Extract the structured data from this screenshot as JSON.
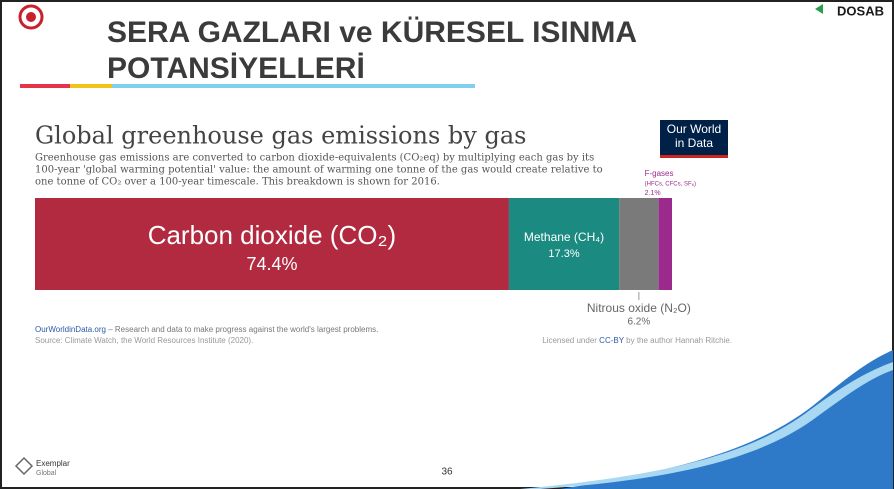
{
  "slide": {
    "title_lines": [
      "SERA GAZLARI ve KÜRESEL ISINMA",
      "POTANSİYELLERİ"
    ],
    "logo_right": "DOSAB",
    "footer_logo": [
      "Exemplar",
      "Global"
    ],
    "page_number": "36"
  },
  "chart_data": {
    "type": "bar",
    "stacked": true,
    "title": "Global greenhouse gas emissions by gas",
    "subtitle_lines": [
      "Greenhouse gas emissions are converted to carbon dioxide-equivalents (CO₂eq) by multiplying each gas by its",
      "100-year 'global warming potential' value: the amount of warming one tonne of the gas would create relative to",
      "one tonne of CO₂ over a 100-year timescale. This breakdown is shown for 2016."
    ],
    "brand": [
      "Our World",
      "in Data"
    ],
    "series": [
      {
        "name": "Carbon dioxide (CO₂)",
        "color": "#b12a3f",
        "values": [
          74.4
        ],
        "value_labels": [
          "74.4%"
        ]
      },
      {
        "name": "Methane (CH₄)",
        "color": "#1b8a80",
        "values": [
          17.3
        ],
        "value_labels": [
          "17.3%"
        ]
      },
      {
        "name": "Nitrous oxide (N₂O)",
        "color": "#7a7a7a",
        "values": [
          6.2
        ],
        "value_labels": [
          "6.2%"
        ]
      },
      {
        "name": "F-gases",
        "note": "(HFCs, CFCs, SF₆)",
        "color": "#9b2a8c",
        "values": [
          2.1
        ],
        "value_labels": [
          "2.1%"
        ]
      }
    ],
    "footer_left": [
      "OurWorldinData.org",
      " – Research and data to make progress against the world's largest problems."
    ],
    "source": "Source: Climate Watch, the World Resources Institute (2020).",
    "license": [
      "Licensed under ",
      "CC-BY",
      " by the author Hannah Ritchie."
    ]
  }
}
